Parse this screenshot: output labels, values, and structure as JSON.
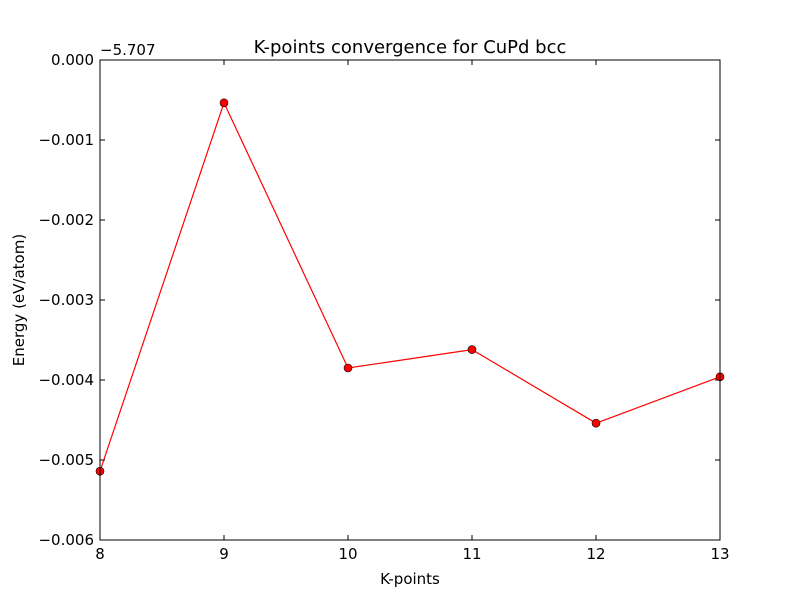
{
  "chart_data": {
    "type": "line",
    "title": "K-points convergence for CuPd bcc",
    "xlabel": "K-points",
    "ylabel": "Energy (eV/atom)",
    "y_offset_label": "−5.707",
    "x": [
      8,
      9,
      10,
      11,
      12,
      13
    ],
    "series": [
      {
        "name": "",
        "values": [
          -0.00514,
          -0.000535,
          -0.00385,
          -0.00362,
          -0.00454,
          -0.00396
        ],
        "color": "#ff0000",
        "marker": "circle"
      }
    ],
    "xlim": [
      8,
      13
    ],
    "ylim": [
      -0.006,
      0.0
    ],
    "xticks": [
      8,
      9,
      10,
      11,
      12,
      13
    ],
    "xtick_labels": [
      "8",
      "9",
      "10",
      "11",
      "12",
      "13"
    ],
    "yticks": [
      -0.006,
      -0.005,
      -0.004,
      -0.003,
      -0.002,
      -0.001,
      0.0
    ],
    "ytick_labels": [
      "−0.006",
      "−0.005",
      "−0.004",
      "−0.003",
      "−0.002",
      "−0.001",
      "0.000"
    ],
    "grid": false,
    "legend": "none"
  }
}
